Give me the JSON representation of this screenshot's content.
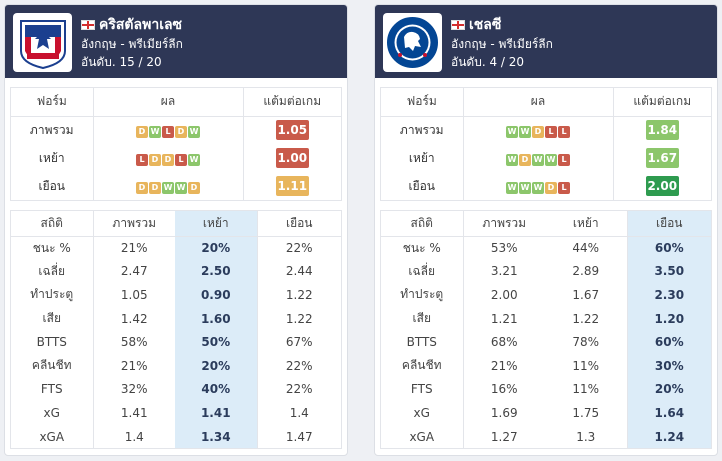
{
  "teams": [
    {
      "name": "คริสตัลพาเลซ",
      "country_league": "อังกฤษ - พรีเมียร์ลีก",
      "rank": "อันดับ. 15 / 20",
      "logo_icon": "crystal-palace-eagle-crest",
      "form_headers": [
        "ฟอร์ม",
        "ผล",
        "แต้มต่อเกม"
      ],
      "form_rows": [
        {
          "label": "ภาพรวม",
          "results": [
            "D",
            "W",
            "L",
            "D",
            "W"
          ],
          "ppg": "1.05",
          "ppg_color": "#c95a4a"
        },
        {
          "label": "เหย้า",
          "results": [
            "L",
            "D",
            "D",
            "L",
            "W"
          ],
          "ppg": "1.00",
          "ppg_color": "#c95a4a"
        },
        {
          "label": "เยือน",
          "results": [
            "D",
            "D",
            "W",
            "W",
            "D"
          ],
          "ppg": "1.11",
          "ppg_color": "#e8b55c"
        }
      ],
      "stats_headers": [
        "สถิติ",
        "ภาพรวม",
        "เหย้า",
        "เยือน"
      ],
      "highlight_col": 2,
      "stats_rows": [
        {
          "label": "ชนะ %",
          "values": [
            "21%",
            "20%",
            "22%"
          ]
        },
        {
          "label": "เฉลี่ย",
          "values": [
            "2.47",
            "2.50",
            "2.44"
          ]
        },
        {
          "label": "ทำประตู",
          "values": [
            "1.05",
            "0.90",
            "1.22"
          ]
        },
        {
          "label": "เสีย",
          "values": [
            "1.42",
            "1.60",
            "1.22"
          ]
        },
        {
          "label": "BTTS",
          "values": [
            "58%",
            "50%",
            "67%"
          ]
        },
        {
          "label": "คลีนชีท",
          "values": [
            "21%",
            "20%",
            "22%"
          ]
        },
        {
          "label": "FTS",
          "values": [
            "32%",
            "40%",
            "22%"
          ]
        },
        {
          "label": "xG",
          "values": [
            "1.41",
            "1.41",
            "1.4"
          ]
        },
        {
          "label": "xGA",
          "values": [
            "1.4",
            "1.34",
            "1.47"
          ]
        }
      ]
    },
    {
      "name": "เชลซี",
      "country_league": "อังกฤษ - พรีเมียร์ลีก",
      "rank": "อันดับ. 4 / 20",
      "logo_icon": "chelsea-lion-crest",
      "form_headers": [
        "ฟอร์ม",
        "ผล",
        "แต้มต่อเกม"
      ],
      "form_rows": [
        {
          "label": "ภาพรวม",
          "results": [
            "W",
            "W",
            "D",
            "L",
            "L"
          ],
          "ppg": "1.84",
          "ppg_color": "#8cc66b"
        },
        {
          "label": "เหย้า",
          "results": [
            "W",
            "D",
            "W",
            "W",
            "L"
          ],
          "ppg": "1.67",
          "ppg_color": "#8cc66b"
        },
        {
          "label": "เยือน",
          "results": [
            "W",
            "W",
            "W",
            "D",
            "L"
          ],
          "ppg": "2.00",
          "ppg_color": "#2e9b4f"
        }
      ],
      "stats_headers": [
        "สถิติ",
        "ภาพรวม",
        "เหย้า",
        "เยือน"
      ],
      "highlight_col": 3,
      "stats_rows": [
        {
          "label": "ชนะ %",
          "values": [
            "53%",
            "44%",
            "60%"
          ]
        },
        {
          "label": "เฉลี่ย",
          "values": [
            "3.21",
            "2.89",
            "3.50"
          ]
        },
        {
          "label": "ทำประตู",
          "values": [
            "2.00",
            "1.67",
            "2.30"
          ]
        },
        {
          "label": "เสีย",
          "values": [
            "1.21",
            "1.22",
            "1.20"
          ]
        },
        {
          "label": "BTTS",
          "values": [
            "68%",
            "78%",
            "60%"
          ]
        },
        {
          "label": "คลีนชีท",
          "values": [
            "21%",
            "11%",
            "30%"
          ]
        },
        {
          "label": "FTS",
          "values": [
            "16%",
            "11%",
            "20%"
          ]
        },
        {
          "label": "xG",
          "values": [
            "1.69",
            "1.75",
            "1.64"
          ]
        },
        {
          "label": "xGA",
          "values": [
            "1.27",
            "1.3",
            "1.24"
          ]
        }
      ]
    }
  ],
  "colors": {
    "header_bg": "#2e3756",
    "win": "#8cc66b",
    "draw": "#e8b55c",
    "loss": "#c95a4a",
    "highlight": "#dcecf8"
  }
}
